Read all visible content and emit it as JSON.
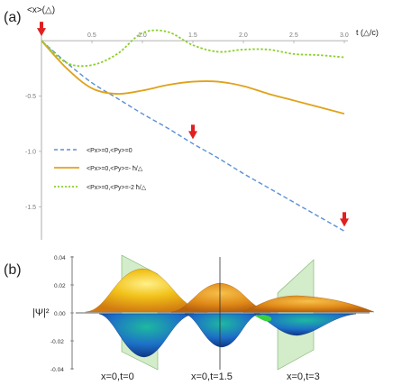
{
  "panel_a": {
    "panel_label": "(a)",
    "ylabel": "<x>(△)",
    "xlabel": "t (△/c)",
    "legend": [
      "<Px>=0,<Py>=0",
      "<Px>=0,<Py>=- ħ/△",
      "<Px>=0,<Py>=-2 ħ/△"
    ]
  },
  "panel_b": {
    "panel_label": "(b)",
    "ylabel": "|Ψ|²",
    "slice_labels": [
      "x=0,t=0",
      "x=0,t=1.5",
      "x=0,t=3"
    ],
    "yticks": [
      "0.04",
      "0.02",
      "0.00",
      "-0.02",
      "-0.04"
    ]
  },
  "colors": {
    "blue": "#5b8fd6",
    "orange": "#e0a21a",
    "green": "#8ccf2a",
    "marker": "#e02020"
  },
  "chart_data": [
    {
      "type": "line",
      "xlabel": "t (△/c)",
      "ylabel": "<x>(△)",
      "xlim": [
        0,
        3.0
      ],
      "ylim": [
        -1.75,
        0.05
      ],
      "xticks": [
        0.5,
        1.0,
        1.5,
        2.0,
        2.5,
        3.0
      ],
      "yticks": [
        -0.5,
        -1.0,
        -1.5
      ],
      "legend_position": "lower-left",
      "series": [
        {
          "name": "<Px>=0,<Py>=0",
          "style": "dashed",
          "x": [
            0,
            0.25,
            0.5,
            0.75,
            1.0,
            1.25,
            1.5,
            1.75,
            2.0,
            2.25,
            2.5,
            2.75,
            3.0
          ],
          "y": [
            0,
            -0.2,
            -0.38,
            -0.52,
            -0.66,
            -0.79,
            -0.93,
            -1.06,
            -1.2,
            -1.33,
            -1.46,
            -1.59,
            -1.72
          ]
        },
        {
          "name": "<Px>=0,<Py>=- ħ/△",
          "style": "solid",
          "x": [
            0,
            0.25,
            0.5,
            0.75,
            1.0,
            1.25,
            1.5,
            1.75,
            2.0,
            2.25,
            2.5,
            2.75,
            3.0
          ],
          "y": [
            0,
            -0.25,
            -0.43,
            -0.48,
            -0.45,
            -0.4,
            -0.37,
            -0.37,
            -0.41,
            -0.48,
            -0.54,
            -0.6,
            -0.66
          ]
        },
        {
          "name": "<Px>=0,<Py>=-2 ħ/△",
          "style": "dotted",
          "x": [
            0,
            0.25,
            0.5,
            0.75,
            1.0,
            1.25,
            1.5,
            1.75,
            2.0,
            2.25,
            2.5,
            2.75,
            3.0
          ],
          "y": [
            0,
            -0.2,
            -0.22,
            -0.12,
            0.07,
            0.08,
            -0.04,
            -0.1,
            -0.08,
            -0.08,
            -0.12,
            -0.13,
            -0.15
          ]
        }
      ],
      "markers": [
        {
          "x": 0.0,
          "y": 0.0
        },
        {
          "x": 1.5,
          "y": -0.93
        },
        {
          "x": 3.0,
          "y": -1.72
        }
      ]
    }
  ]
}
